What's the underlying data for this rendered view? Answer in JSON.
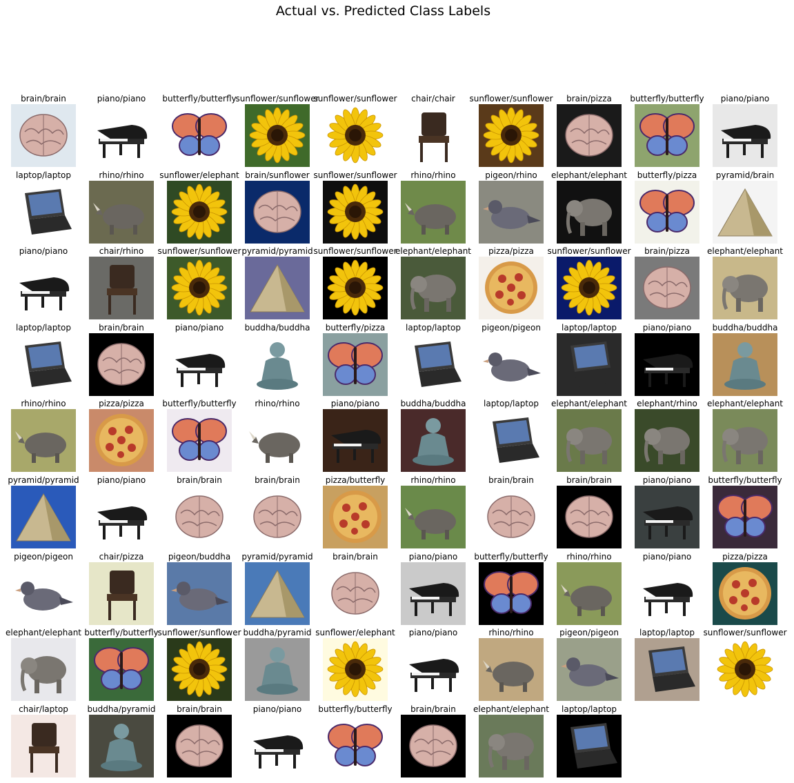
{
  "title": "Actual vs. Predicted Class Labels",
  "cells": [
    {
      "label": "brain/brain",
      "subject": "brain",
      "bg": "#dfe8ef"
    },
    {
      "label": "piano/piano",
      "subject": "piano",
      "bg": "#ffffff"
    },
    {
      "label": "butterfly/butterfly",
      "subject": "butterfly",
      "bg": "#ffffff"
    },
    {
      "label": "sunflower/sunflower",
      "subject": "sunflower",
      "bg": "#3f6a2a"
    },
    {
      "label": "sunflower/sunflower",
      "subject": "sunflower",
      "bg": "#ffffff"
    },
    {
      "label": "chair/chair",
      "subject": "chair",
      "bg": "#ffffff"
    },
    {
      "label": "sunflower/sunflower",
      "subject": "sunflower",
      "bg": "#5a3a1a"
    },
    {
      "label": "brain/pizza",
      "subject": "brain",
      "bg": "#1a1a1a"
    },
    {
      "label": "butterfly/butterfly",
      "subject": "butterfly",
      "bg": "#8ea46e"
    },
    {
      "label": "piano/piano",
      "subject": "piano",
      "bg": "#e8e8e8"
    },
    {
      "label": "laptop/laptop",
      "subject": "laptop",
      "bg": "#ffffff"
    },
    {
      "label": "rhino/rhino",
      "subject": "rhino",
      "bg": "#6b6a50"
    },
    {
      "label": "sunflower/elephant",
      "subject": "sunflower",
      "bg": "#2f4a24"
    },
    {
      "label": "brain/sunflower",
      "subject": "brain",
      "bg": "#0a2a6a"
    },
    {
      "label": "sunflower/sunflower",
      "subject": "sunflower",
      "bg": "#0e0e0e"
    },
    {
      "label": "rhino/rhino",
      "subject": "rhino",
      "bg": "#6f8a4a"
    },
    {
      "label": "pigeon/rhino",
      "subject": "pigeon",
      "bg": "#8a8a80"
    },
    {
      "label": "elephant/elephant",
      "subject": "elephant",
      "bg": "#111111"
    },
    {
      "label": "butterfly/pizza",
      "subject": "butterfly",
      "bg": "#f2f2ea"
    },
    {
      "label": "pyramid/brain",
      "subject": "pyramid",
      "bg": "#f4f4f4"
    },
    {
      "label": "piano/piano",
      "subject": "piano",
      "bg": "#ffffff"
    },
    {
      "label": "chair/rhino",
      "subject": "chair",
      "bg": "#6a6a66"
    },
    {
      "label": "sunflower/sunflower",
      "subject": "sunflower",
      "bg": "#3d5a2a"
    },
    {
      "label": "pyramid/pyramid",
      "subject": "pyramid",
      "bg": "#6a6a9a"
    },
    {
      "label": "sunflower/sunflower",
      "subject": "sunflower",
      "bg": "#000000"
    },
    {
      "label": "elephant/elephant",
      "subject": "elephant",
      "bg": "#4a5a3a"
    },
    {
      "label": "pizza/pizza",
      "subject": "pizza",
      "bg": "#f4f0ea"
    },
    {
      "label": "sunflower/sunflower",
      "subject": "sunflower",
      "bg": "#0a1a6a"
    },
    {
      "label": "brain/pizza",
      "subject": "brain",
      "bg": "#7a7a7a"
    },
    {
      "label": "elephant/elephant",
      "subject": "elephant",
      "bg": "#c8b88a"
    },
    {
      "label": "laptop/laptop",
      "subject": "laptop",
      "bg": "#ffffff"
    },
    {
      "label": "brain/brain",
      "subject": "brain",
      "bg": "#000000"
    },
    {
      "label": "piano/piano",
      "subject": "piano",
      "bg": "#ffffff"
    },
    {
      "label": "buddha/buddha",
      "subject": "buddha",
      "bg": "#ffffff"
    },
    {
      "label": "butterfly/pizza",
      "subject": "butterfly",
      "bg": "#8aa0a0"
    },
    {
      "label": "laptop/laptop",
      "subject": "laptop",
      "bg": "#ffffff"
    },
    {
      "label": "pigeon/pigeon",
      "subject": "pigeon",
      "bg": "#ffffff"
    },
    {
      "label": "laptop/laptop",
      "subject": "laptop",
      "bg": "#2a2a2a"
    },
    {
      "label": "piano/piano",
      "subject": "piano",
      "bg": "#000000"
    },
    {
      "label": "buddha/buddha",
      "subject": "buddha",
      "bg": "#b8905a"
    },
    {
      "label": "rhino/rhino",
      "subject": "rhino",
      "bg": "#a8a86a"
    },
    {
      "label": "pizza/pizza",
      "subject": "pizza",
      "bg": "#c98a6a"
    },
    {
      "label": "butterfly/butterfly",
      "subject": "butterfly",
      "bg": "#efeaf0"
    },
    {
      "label": "rhino/rhino",
      "subject": "rhino",
      "bg": "#ffffff"
    },
    {
      "label": "piano/piano",
      "subject": "piano",
      "bg": "#3a2418"
    },
    {
      "label": "buddha/buddha",
      "subject": "buddha",
      "bg": "#4a2a2a"
    },
    {
      "label": "laptop/laptop",
      "subject": "laptop",
      "bg": "#ffffff"
    },
    {
      "label": "elephant/elephant",
      "subject": "elephant",
      "bg": "#6a7a4a"
    },
    {
      "label": "elephant/rhino",
      "subject": "elephant",
      "bg": "#3a4a2a"
    },
    {
      "label": "elephant/elephant",
      "subject": "elephant",
      "bg": "#7a8a5a"
    },
    {
      "label": "pyramid/pyramid",
      "subject": "pyramid",
      "bg": "#2a5aba"
    },
    {
      "label": "piano/piano",
      "subject": "piano",
      "bg": "#ffffff"
    },
    {
      "label": "brain/brain",
      "subject": "brain",
      "bg": "#ffffff"
    },
    {
      "label": "brain/brain",
      "subject": "brain",
      "bg": "#ffffff"
    },
    {
      "label": "pizza/butterfly",
      "subject": "pizza",
      "bg": "#c8a060"
    },
    {
      "label": "rhino/rhino",
      "subject": "rhino",
      "bg": "#6a8a4a"
    },
    {
      "label": "brain/brain",
      "subject": "brain",
      "bg": "#ffffff"
    },
    {
      "label": "brain/brain",
      "subject": "brain",
      "bg": "#000000"
    },
    {
      "label": "piano/piano",
      "subject": "piano",
      "bg": "#3a4040"
    },
    {
      "label": "butterfly/butterfly",
      "subject": "butterfly",
      "bg": "#3a2a3a"
    },
    {
      "label": "pigeon/pigeon",
      "subject": "pigeon",
      "bg": "#ffffff"
    },
    {
      "label": "chair/pizza",
      "subject": "chair",
      "bg": "#e6e6c8"
    },
    {
      "label": "pigeon/buddha",
      "subject": "pigeon",
      "bg": "#5a7aa8"
    },
    {
      "label": "pyramid/pyramid",
      "subject": "pyramid",
      "bg": "#4a7ab8"
    },
    {
      "label": "brain/brain",
      "subject": "brain",
      "bg": "#ffffff"
    },
    {
      "label": "piano/piano",
      "subject": "piano",
      "bg": "#cacaca"
    },
    {
      "label": "butterfly/butterfly",
      "subject": "butterfly",
      "bg": "#000000"
    },
    {
      "label": "rhino/rhino",
      "subject": "rhino",
      "bg": "#8a9a5a"
    },
    {
      "label": "piano/piano",
      "subject": "piano",
      "bg": "#ffffff"
    },
    {
      "label": "pizza/pizza",
      "subject": "pizza",
      "bg": "#1a4a4a"
    },
    {
      "label": "elephant/elephant",
      "subject": "elephant",
      "bg": "#e8e8ec"
    },
    {
      "label": "butterfly/butterfly",
      "subject": "butterfly",
      "bg": "#3a6a3a"
    },
    {
      "label": "sunflower/sunflower",
      "subject": "sunflower",
      "bg": "#2a3a1a"
    },
    {
      "label": "buddha/pyramid",
      "subject": "buddha",
      "bg": "#9a9a9a"
    },
    {
      "label": "sunflower/elephant",
      "subject": "sunflower",
      "bg": "#fffbe0"
    },
    {
      "label": "piano/piano",
      "subject": "piano",
      "bg": "#ffffff"
    },
    {
      "label": "rhino/rhino",
      "subject": "rhino",
      "bg": "#c0a880"
    },
    {
      "label": "pigeon/pigeon",
      "subject": "pigeon",
      "bg": "#9aa08a"
    },
    {
      "label": "laptop/laptop",
      "subject": "laptop",
      "bg": "#b0a090"
    },
    {
      "label": "sunflower/sunflower",
      "subject": "sunflower",
      "bg": "#ffffff"
    },
    {
      "label": "chair/laptop",
      "subject": "chair",
      "bg": "#f4e8e4"
    },
    {
      "label": "buddha/pyramid",
      "subject": "buddha",
      "bg": "#4a4a40"
    },
    {
      "label": "brain/brain",
      "subject": "brain",
      "bg": "#000000"
    },
    {
      "label": "piano/piano",
      "subject": "piano",
      "bg": "#ffffff"
    },
    {
      "label": "butterfly/butterfly",
      "subject": "butterfly",
      "bg": "#ffffff"
    },
    {
      "label": "brain/brain",
      "subject": "brain",
      "bg": "#000000"
    },
    {
      "label": "elephant/elephant",
      "subject": "elephant",
      "bg": "#6a7a5a"
    },
    {
      "label": "laptop/laptop",
      "subject": "laptop",
      "bg": "#000000"
    }
  ]
}
